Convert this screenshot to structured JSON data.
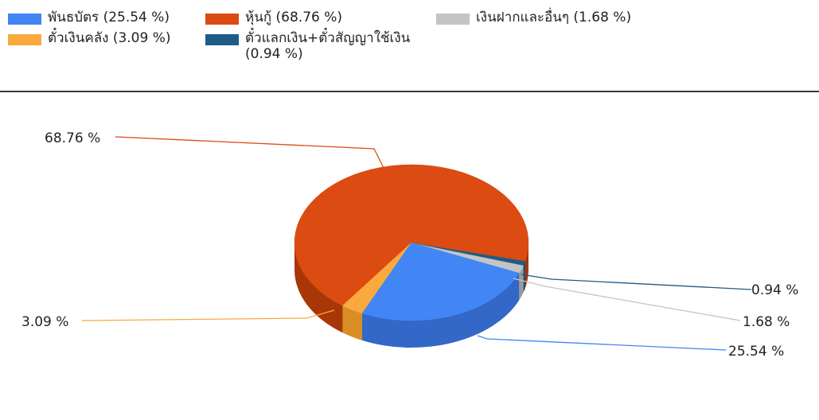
{
  "chart_data": {
    "type": "pie",
    "style": "3d",
    "slices": [
      {
        "label": "พันธบัตร",
        "value": 25.54,
        "legend_text": "พันธบัตร (25.54 %)",
        "data_label": "25.54 %",
        "color": "#4285F4",
        "side": "#3367C8"
      },
      {
        "label": "หุ้นกู้",
        "value": 68.76,
        "legend_text": "หุ้นกู้ (68.76 %)",
        "data_label": "68.76 %",
        "color": "#DB4B12",
        "side": "#A83606"
      },
      {
        "label": "เงินฝากและอื่นๆ",
        "value": 1.68,
        "legend_text": "เงินฝากและอื่นๆ (1.68 %)",
        "data_label": "1.68 %",
        "color": "#C4C4C4",
        "side": "#9A9A9A"
      },
      {
        "label": "ตั๋วเงินคลัง",
        "value": 3.09,
        "legend_text": "ตั๋วเงินคลัง (3.09 %)",
        "data_label": "3.09 %",
        "color": "#FAAA3C",
        "side": "#D88E25"
      },
      {
        "label": "ตั๋วแลกเงิน+ตั๋วสัญญาใช้เงิน",
        "value": 0.94,
        "legend_text": "ตั๋วแลกเงิน+ตั๋วสัญญาใช้เงิน (0.94 %)",
        "data_label": "0.94 %",
        "color": "#1F5C85",
        "side": "#164460"
      }
    ],
    "legend_position": "top"
  }
}
